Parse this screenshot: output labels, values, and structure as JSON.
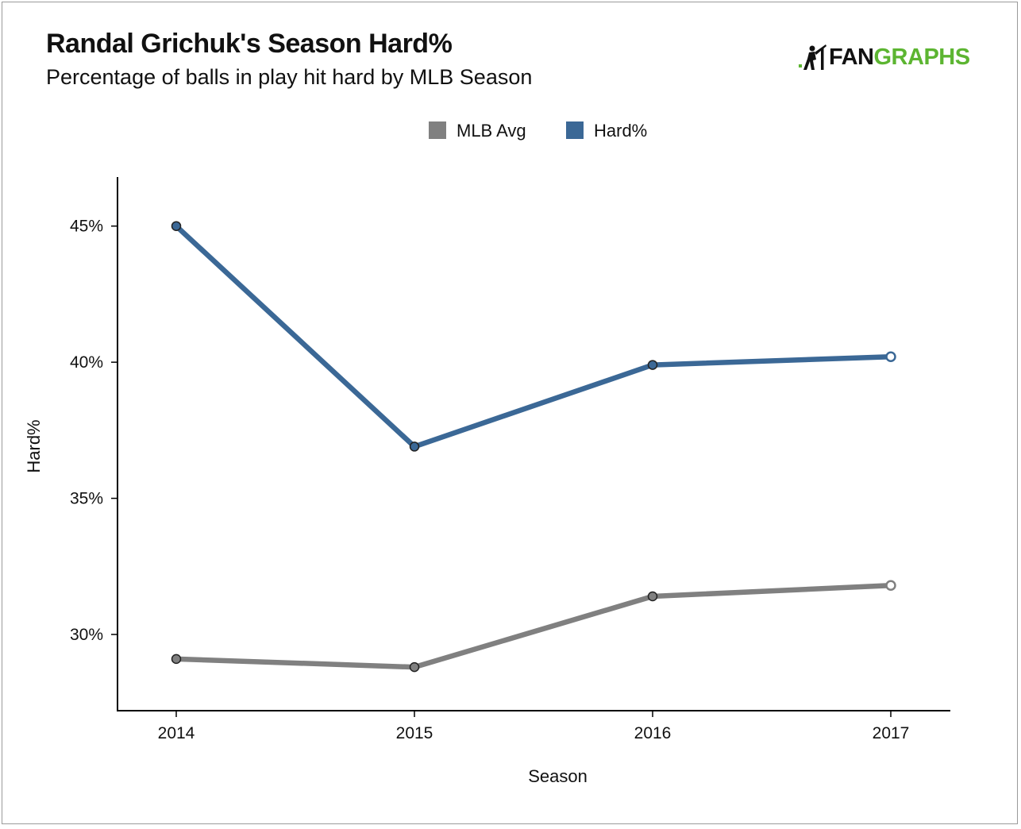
{
  "chart_data": {
    "type": "line",
    "title": "Randal Grichuk's Season Hard%",
    "subtitle": "Percentage of balls in play hit hard by MLB Season",
    "xlabel": "Season",
    "ylabel": "Hard%",
    "categories": [
      "2014",
      "2015",
      "2016",
      "2017"
    ],
    "yticks": [
      30,
      35,
      40,
      45
    ],
    "ytick_labels": [
      "30%",
      "35%",
      "40%",
      "45%"
    ],
    "ylim": [
      27.2,
      46.8
    ],
    "grid": false,
    "legend_position": "top-center",
    "series": [
      {
        "name": "MLB Avg",
        "color": "#808080",
        "values": [
          29.1,
          28.8,
          31.4,
          31.8
        ],
        "last_point_open": true
      },
      {
        "name": "Hard%",
        "color": "#3b6896",
        "values": [
          45.0,
          36.9,
          39.9,
          40.2
        ],
        "last_point_open": true
      }
    ]
  },
  "branding": {
    "logo_part1": "FAN",
    "logo_part2": "GRAPHS",
    "logo_icon": "batter-icon",
    "logo_color": "#5cb531"
  }
}
